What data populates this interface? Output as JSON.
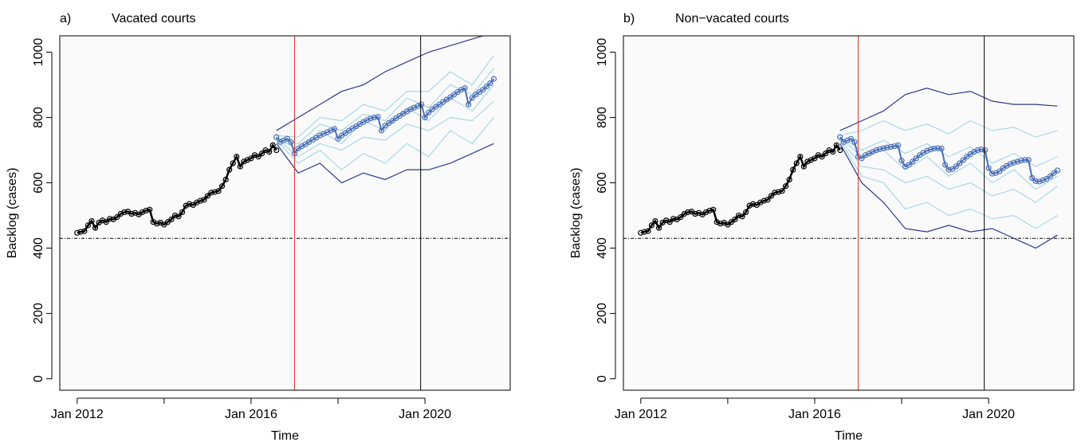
{
  "chart_data": [
    {
      "type": "line",
      "panel_label": "a)",
      "title": "Vacated courts",
      "xlabel": "Time",
      "ylabel": "Backlog (cases)",
      "xlim": [
        2011.6,
        2021.96
      ],
      "ylim": [
        -35,
        1050
      ],
      "xticks": [
        {
          "value": 2012,
          "label": "Jan 2012"
        },
        {
          "value": 2016,
          "label": "Jan 2016"
        },
        {
          "value": 2020,
          "label": "Jan 2020"
        }
      ],
      "xminorticks": [
        2014,
        2018
      ],
      "yticks": [
        0,
        200,
        400,
        600,
        800,
        1000
      ],
      "vlines": [
        {
          "x": 2017.0,
          "color": "#e8302a"
        },
        {
          "x": 2019.9,
          "color": "#000000"
        }
      ],
      "hline": 430,
      "series": [
        {
          "color": "#a8d8e8",
          "x": [
            2016.583,
            2017.083,
            2017.583,
            2018.083,
            2018.583,
            2019.083,
            2019.583,
            2020.083,
            2020.583,
            2021.083,
            2021.583
          ],
          "values": [
            740,
            700,
            760,
            720,
            790,
            760,
            830,
            790,
            860,
            820,
            900
          ]
        },
        {
          "color": "#a8d8e8",
          "x": [
            2016.583,
            2017.083,
            2017.583,
            2018.083,
            2018.583,
            2019.083,
            2019.583,
            2020.083,
            2020.583,
            2021.083,
            2021.583
          ],
          "values": [
            735,
            680,
            720,
            700,
            740,
            730,
            780,
            760,
            800,
            790,
            850
          ]
        },
        {
          "color": "#a8d8e8",
          "x": [
            2016.583,
            2017.083,
            2017.583,
            2018.083,
            2018.583,
            2019.083,
            2019.583,
            2020.083,
            2020.583,
            2021.083,
            2021.583
          ],
          "values": [
            745,
            740,
            800,
            790,
            840,
            820,
            880,
            880,
            940,
            900,
            990
          ]
        },
        {
          "color": "#a8d8e8",
          "x": [
            2016.583,
            2017.083,
            2017.583,
            2018.083,
            2018.583,
            2019.083,
            2019.583,
            2020.083,
            2020.583,
            2021.083,
            2021.583
          ],
          "values": [
            730,
            660,
            700,
            640,
            690,
            660,
            720,
            680,
            760,
            720,
            800
          ]
        },
        {
          "color": "#a8d8e8",
          "x": [
            2016.583,
            2017.083,
            2017.583,
            2018.083,
            2018.583,
            2019.083,
            2019.583,
            2020.083,
            2020.583,
            2021.083,
            2021.583
          ],
          "values": [
            738,
            720,
            780,
            760,
            810,
            790,
            860,
            830,
            900,
            870,
            950
          ]
        },
        {
          "color": "#2b3a8f",
          "x": [
            2016.583,
            2017.083,
            2017.583,
            2018.083,
            2018.583,
            2019.083,
            2019.583,
            2020.083,
            2020.583,
            2021.083,
            2021.583
          ],
          "values": [
            760,
            800,
            840,
            880,
            900,
            940,
            970,
            1000,
            1020,
            1040,
            1060
          ]
        },
        {
          "color": "#2b3a8f",
          "x": [
            2016.583,
            2017.083,
            2017.583,
            2018.083,
            2018.583,
            2019.083,
            2019.583,
            2020.083,
            2020.583,
            2021.083,
            2021.583
          ],
          "values": [
            720,
            630,
            660,
            600,
            630,
            610,
            640,
            640,
            660,
            690,
            720
          ]
        },
        {
          "color": "#000000",
          "points": true,
          "width": 2.5,
          "x": [
            2012.0,
            2012.083,
            2012.167,
            2012.25,
            2012.333,
            2012.417,
            2012.5,
            2012.583,
            2012.667,
            2012.75,
            2012.833,
            2012.917,
            2013.0,
            2013.083,
            2013.167,
            2013.25,
            2013.333,
            2013.417,
            2013.5,
            2013.583,
            2013.667,
            2013.75,
            2013.833,
            2013.917,
            2014.0,
            2014.083,
            2014.167,
            2014.25,
            2014.333,
            2014.417,
            2014.5,
            2014.583,
            2014.667,
            2014.75,
            2014.833,
            2014.917,
            2015.0,
            2015.083,
            2015.167,
            2015.25,
            2015.333,
            2015.417,
            2015.5,
            2015.583,
            2015.667,
            2015.75,
            2015.833,
            2015.917,
            2016.0,
            2016.083,
            2016.167,
            2016.25,
            2016.333,
            2016.417,
            2016.5,
            2016.583
          ],
          "values": [
            447,
            450,
            452,
            470,
            483,
            462,
            478,
            485,
            480,
            490,
            488,
            495,
            505,
            510,
            512,
            505,
            508,
            503,
            510,
            515,
            518,
            480,
            475,
            478,
            472,
            480,
            488,
            500,
            497,
            510,
            530,
            535,
            532,
            540,
            545,
            548,
            560,
            570,
            572,
            575,
            590,
            610,
            640,
            660,
            680,
            650,
            665,
            670,
            675,
            685,
            680,
            690,
            700,
            695,
            715,
            700
          ]
        },
        {
          "color": "#4a6fb5",
          "points": true,
          "width": 2,
          "x": [
            2016.583,
            2016.667,
            2016.75,
            2016.833,
            2016.917,
            2017.0,
            2017.083,
            2017.167,
            2017.25,
            2017.333,
            2017.417,
            2017.5,
            2017.583,
            2017.667,
            2017.75,
            2017.833,
            2017.917,
            2018.0,
            2018.083,
            2018.167,
            2018.25,
            2018.333,
            2018.417,
            2018.5,
            2018.583,
            2018.667,
            2018.75,
            2018.833,
            2018.917,
            2019.0,
            2019.083,
            2019.167,
            2019.25,
            2019.333,
            2019.417,
            2019.5,
            2019.583,
            2019.667,
            2019.75,
            2019.833,
            2019.917,
            2020.0,
            2020.083,
            2020.167,
            2020.25,
            2020.333,
            2020.417,
            2020.5,
            2020.583,
            2020.667,
            2020.75,
            2020.833,
            2020.917,
            2021.0,
            2021.083,
            2021.167,
            2021.25,
            2021.333,
            2021.417,
            2021.5,
            2021.583
          ],
          "values": [
            740,
            725,
            730,
            735,
            725,
            690,
            705,
            712,
            718,
            725,
            732,
            738,
            745,
            750,
            755,
            760,
            765,
            735,
            745,
            752,
            760,
            767,
            773,
            780,
            786,
            792,
            797,
            800,
            802,
            760,
            775,
            783,
            790,
            798,
            805,
            812,
            818,
            825,
            830,
            835,
            840,
            800,
            815,
            825,
            833,
            840,
            848,
            855,
            862,
            870,
            878,
            885,
            890,
            840,
            860,
            870,
            878,
            885,
            895,
            905,
            918
          ]
        }
      ]
    },
    {
      "type": "line",
      "panel_label": "b)",
      "title": "Non−vacated courts",
      "xlabel": "Time",
      "ylabel": "Backlog (cases)",
      "xlim": [
        2011.6,
        2021.96
      ],
      "ylim": [
        -35,
        1050
      ],
      "xticks": [
        {
          "value": 2012,
          "label": "Jan 2012"
        },
        {
          "value": 2016,
          "label": "Jan 2016"
        },
        {
          "value": 2020,
          "label": "Jan 2020"
        }
      ],
      "xminorticks": [
        2014,
        2018
      ],
      "yticks": [
        0,
        200,
        400,
        600,
        800,
        1000
      ],
      "vlines": [
        {
          "x": 2017.0,
          "color": "#e8302a"
        },
        {
          "x": 2019.9,
          "color": "#000000"
        }
      ],
      "hline": 430,
      "series": [
        {
          "color": "#a8d8e8",
          "x": [
            2016.583,
            2017.083,
            2017.583,
            2018.083,
            2018.583,
            2019.083,
            2019.583,
            2020.083,
            2020.583,
            2021.083,
            2021.583
          ],
          "values": [
            740,
            700,
            730,
            690,
            720,
            680,
            710,
            660,
            690,
            650,
            680
          ]
        },
        {
          "color": "#a8d8e8",
          "x": [
            2016.583,
            2017.083,
            2017.583,
            2018.083,
            2018.583,
            2019.083,
            2019.583,
            2020.083,
            2020.583,
            2021.083,
            2021.583
          ],
          "values": [
            735,
            650,
            640,
            600,
            620,
            580,
            600,
            560,
            580,
            540,
            590
          ]
        },
        {
          "color": "#a8d8e8",
          "x": [
            2016.583,
            2017.083,
            2017.583,
            2018.083,
            2018.583,
            2019.083,
            2019.583,
            2020.083,
            2020.583,
            2021.083,
            2021.583
          ],
          "values": [
            745,
            760,
            790,
            760,
            780,
            750,
            790,
            760,
            770,
            740,
            760
          ]
        },
        {
          "color": "#a8d8e8",
          "x": [
            2016.583,
            2017.083,
            2017.583,
            2018.083,
            2018.583,
            2019.083,
            2019.583,
            2020.083,
            2020.583,
            2021.083,
            2021.583
          ],
          "values": [
            730,
            620,
            600,
            520,
            540,
            500,
            520,
            490,
            500,
            460,
            500
          ]
        },
        {
          "color": "#a8d8e8",
          "x": [
            2016.583,
            2017.083,
            2017.583,
            2018.083,
            2018.583,
            2019.083,
            2019.583,
            2020.083,
            2020.583,
            2021.083,
            2021.583
          ],
          "values": [
            738,
            680,
            700,
            640,
            680,
            620,
            660,
            600,
            640,
            580,
            620
          ]
        },
        {
          "color": "#2b3a8f",
          "x": [
            2016.583,
            2017.083,
            2017.583,
            2018.083,
            2018.583,
            2019.083,
            2019.583,
            2020.083,
            2020.583,
            2021.083,
            2021.583
          ],
          "values": [
            760,
            790,
            820,
            870,
            890,
            870,
            880,
            850,
            840,
            840,
            835
          ]
        },
        {
          "color": "#2b3a8f",
          "x": [
            2016.583,
            2017.083,
            2017.583,
            2018.083,
            2018.583,
            2019.083,
            2019.583,
            2020.083,
            2020.583,
            2021.083,
            2021.583
          ],
          "values": [
            720,
            600,
            540,
            460,
            450,
            470,
            450,
            460,
            430,
            400,
            440
          ]
        },
        {
          "color": "#000000",
          "points": true,
          "width": 2.5,
          "x": [
            2012.0,
            2012.083,
            2012.167,
            2012.25,
            2012.333,
            2012.417,
            2012.5,
            2012.583,
            2012.667,
            2012.75,
            2012.833,
            2012.917,
            2013.0,
            2013.083,
            2013.167,
            2013.25,
            2013.333,
            2013.417,
            2013.5,
            2013.583,
            2013.667,
            2013.75,
            2013.833,
            2013.917,
            2014.0,
            2014.083,
            2014.167,
            2014.25,
            2014.333,
            2014.417,
            2014.5,
            2014.583,
            2014.667,
            2014.75,
            2014.833,
            2014.917,
            2015.0,
            2015.083,
            2015.167,
            2015.25,
            2015.333,
            2015.417,
            2015.5,
            2015.583,
            2015.667,
            2015.75,
            2015.833,
            2015.917,
            2016.0,
            2016.083,
            2016.167,
            2016.25,
            2016.333,
            2016.417,
            2016.5,
            2016.583
          ],
          "values": [
            447,
            450,
            452,
            470,
            483,
            462,
            478,
            485,
            480,
            490,
            488,
            495,
            505,
            510,
            512,
            505,
            508,
            503,
            510,
            515,
            518,
            480,
            475,
            478,
            472,
            480,
            488,
            500,
            497,
            510,
            530,
            535,
            532,
            540,
            545,
            548,
            560,
            570,
            572,
            575,
            590,
            610,
            640,
            660,
            680,
            650,
            665,
            670,
            675,
            685,
            680,
            690,
            700,
            695,
            715,
            700
          ]
        },
        {
          "color": "#4a6fb5",
          "points": true,
          "width": 2,
          "x": [
            2016.583,
            2016.667,
            2016.75,
            2016.833,
            2016.917,
            2017.0,
            2017.083,
            2017.167,
            2017.25,
            2017.333,
            2017.417,
            2017.5,
            2017.583,
            2017.667,
            2017.75,
            2017.833,
            2017.917,
            2018.0,
            2018.083,
            2018.167,
            2018.25,
            2018.333,
            2018.417,
            2018.5,
            2018.583,
            2018.667,
            2018.75,
            2018.833,
            2018.917,
            2019.0,
            2019.083,
            2019.167,
            2019.25,
            2019.333,
            2019.417,
            2019.5,
            2019.583,
            2019.667,
            2019.75,
            2019.833,
            2019.917,
            2020.0,
            2020.083,
            2020.167,
            2020.25,
            2020.333,
            2020.417,
            2020.5,
            2020.583,
            2020.667,
            2020.75,
            2020.833,
            2020.917,
            2021.0,
            2021.083,
            2021.167,
            2021.25,
            2021.333,
            2021.417,
            2021.5,
            2021.583
          ],
          "values": [
            740,
            725,
            730,
            735,
            725,
            680,
            675,
            685,
            690,
            695,
            700,
            703,
            706,
            708,
            710,
            712,
            715,
            668,
            650,
            655,
            665,
            675,
            685,
            692,
            698,
            702,
            705,
            706,
            705,
            655,
            640,
            642,
            650,
            660,
            670,
            680,
            688,
            695,
            700,
            702,
            700,
            645,
            628,
            630,
            635,
            645,
            652,
            658,
            662,
            665,
            668,
            670,
            670,
            615,
            605,
            604,
            608,
            612,
            620,
            630,
            638
          ]
        }
      ]
    }
  ]
}
